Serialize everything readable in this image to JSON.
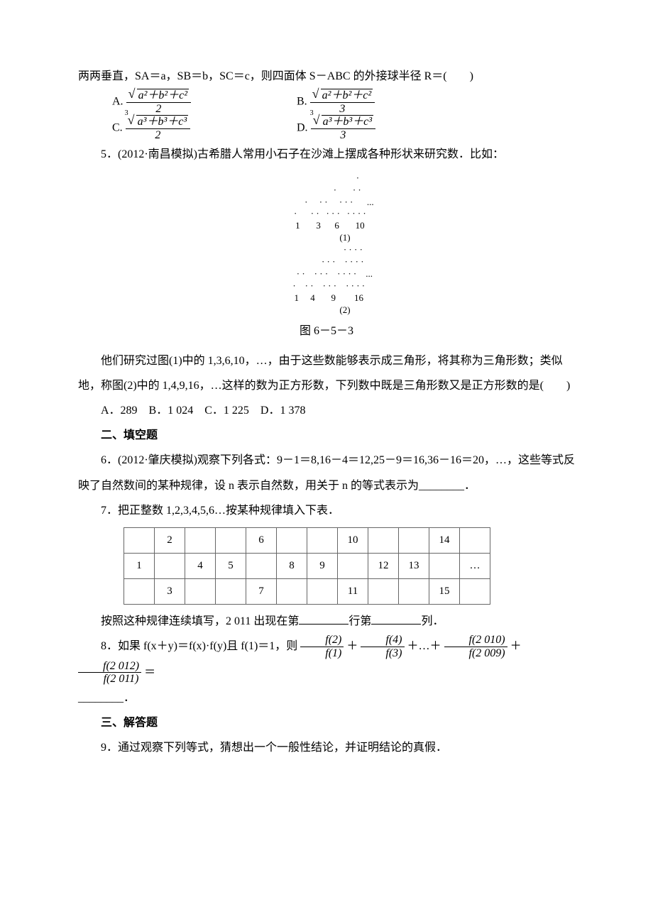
{
  "q4": {
    "stem": "两两垂直，SA＝a，SB＝b，SC＝c，则四面体 S－ABC 的外接球半径 R＝(　　)",
    "optA_label": "A.",
    "optB_label": "B.",
    "optC_label": "C.",
    "optD_label": "D.",
    "sqrt2_body": "a²＋b²＋c²",
    "cbrt_body": "a³＋b³＋c³",
    "den2": "2",
    "den3": "3"
  },
  "q5": {
    "stem1": "5．(2012·南昌模拟)古希腊人常用小石子在沙滩上摆成各种形状来研究数．比如：",
    "fig1_rows": [
      "                           ·",
      "                  ·       · ·",
      "           ·     · ·     · · ·      ...",
      "   ·      · ·   · · ·   · · · ·",
      "   1       3      6       10",
      "                (1)",
      "                       · · · ·",
      "              · · ·    · · · ·",
      "       · ·    · · ·    · · · ·    ...",
      "  ·    · ·    · · ·    · · · ·",
      "  1     4       9        16",
      "                (2)"
    ],
    "fig_caption": "图 6－5－3",
    "stem2": "他们研究过图(1)中的 1,3,6,10，…，由于这些数能够表示成三角形，将其称为三角形数；类似地，称图(2)中的 1,4,9,16，…这样的数为正方形数，下列数中既是三角形数又是正方形数的是(　　)",
    "opts": "A．289　B．1 024　C．1 225　D．1 378"
  },
  "sec2": "二、填空题",
  "q6": "6．(2012·肇庆模拟)观察下列各式：9－1＝8,16－4＝12,25－9＝16,36－16＝20，…，这些等式反映了自然数间的某种规律，设 n 表示自然数，用关于 n 的等式表示为________．",
  "q7": {
    "stem": "7．把正整数 1,2,3,4,5,6…按某种规律填入下表．",
    "table": [
      [
        "",
        "2",
        "",
        "",
        "6",
        "",
        "",
        "10",
        "",
        "",
        "14",
        ""
      ],
      [
        "1",
        "",
        "4",
        "5",
        "",
        "8",
        "9",
        "",
        "12",
        "13",
        "",
        "…"
      ],
      [
        "",
        "3",
        "",
        "",
        "7",
        "",
        "",
        "11",
        "",
        "",
        "15",
        ""
      ]
    ],
    "tail_a": "按照这种规律连续填写，2 011 出现在第",
    "tail_b": "行第",
    "tail_c": "列．"
  },
  "q8": {
    "pre": "8．如果 f(x＋y)＝f(x)·f(y)且 f(1)＝1，则",
    "f2": "f(2)",
    "f1": "f(1)",
    "f4": "f(4)",
    "f3": "f(3)",
    "f2010": "f(2 010)",
    "f2009": "f(2 009)",
    "f2012": "f(2 012)",
    "f2011": "f(2 011)",
    "plus": "＋",
    "dots": "＋…＋",
    "eq": "＝",
    "tail": "________．"
  },
  "sec3": "三、解答题",
  "q9": "9．通过观察下列等式，猜想出一个一般性结论，并证明结论的真假．"
}
